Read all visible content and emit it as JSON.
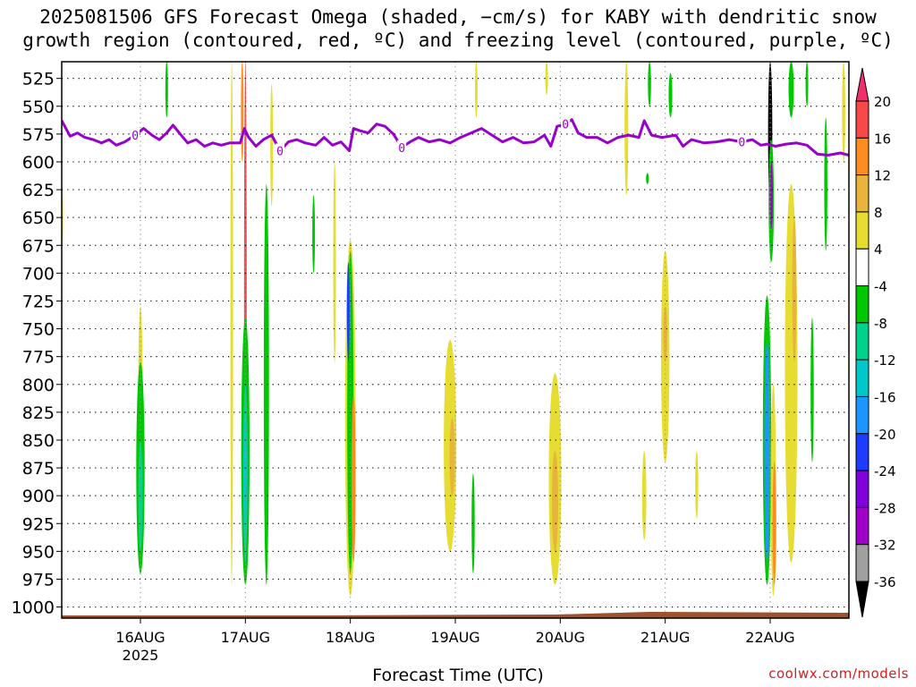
{
  "title": {
    "line1": "2025081506 GFS Forecast Omega (shaded, −cm/s) for KABY with dendritic snow",
    "line2": "growth region (contoured, red, ºC) and freezing level (contoured, purple, ºC)"
  },
  "credit": "coolwx.com/models",
  "chart_data": {
    "type": "heatmap",
    "xlabel": "Forecast Time (UTC)",
    "ylabel": "",
    "x_ticks": [
      {
        "t": 0.75,
        "label": "16AUG",
        "sub": "2025"
      },
      {
        "t": 1.75,
        "label": "17AUG",
        "sub": ""
      },
      {
        "t": 2.75,
        "label": "18AUG",
        "sub": ""
      },
      {
        "t": 3.75,
        "label": "19AUG",
        "sub": ""
      },
      {
        "t": 4.75,
        "label": "20AUG",
        "sub": ""
      },
      {
        "t": 5.75,
        "label": "21AUG",
        "sub": ""
      },
      {
        "t": 6.75,
        "label": "22AUG",
        "sub": ""
      }
    ],
    "xlim": [
      0,
      7.5
    ],
    "ylim": [
      1010,
      510
    ],
    "y_ticks": [
      525,
      550,
      575,
      600,
      625,
      650,
      675,
      700,
      725,
      750,
      775,
      800,
      825,
      850,
      875,
      900,
      925,
      950,
      975,
      1000
    ],
    "colorbar": {
      "bins": [
        {
          "color": "#f0306e",
          "label": "20"
        },
        {
          "color": "#f84848",
          "label": "16"
        },
        {
          "color": "#ff8c1e",
          "label": "12"
        },
        {
          "color": "#e8b43c",
          "label": "8"
        },
        {
          "color": "#e6dc32",
          "label": "4"
        },
        {
          "color": "#ffffff",
          "label": "-4"
        },
        {
          "color": "#00c800",
          "label": "-8"
        },
        {
          "color": "#00d28c",
          "label": "-12"
        },
        {
          "color": "#00c8c8",
          "label": "-16"
        },
        {
          "color": "#1e96ff",
          "label": "-20"
        },
        {
          "color": "#1e3cff",
          "label": "-24"
        },
        {
          "color": "#8200dc",
          "label": "-28"
        },
        {
          "color": "#a000c8",
          "label": "-32"
        },
        {
          "color": "#a0a0a0",
          "label": "-36"
        },
        {
          "color": "#000000",
          "label": ""
        }
      ]
    },
    "freezing_level": {
      "color": "#9900cc",
      "label": "0",
      "points": [
        [
          0.0,
          563
        ],
        [
          0.08,
          577
        ],
        [
          0.15,
          574
        ],
        [
          0.22,
          578
        ],
        [
          0.3,
          580
        ],
        [
          0.38,
          583
        ],
        [
          0.45,
          580
        ],
        [
          0.52,
          585
        ],
        [
          0.6,
          582
        ],
        [
          0.7,
          576
        ],
        [
          0.78,
          570
        ],
        [
          0.86,
          576
        ],
        [
          0.93,
          580
        ],
        [
          1.0,
          574
        ],
        [
          1.06,
          567
        ],
        [
          1.12,
          574
        ],
        [
          1.2,
          583
        ],
        [
          1.28,
          580
        ],
        [
          1.36,
          586
        ],
        [
          1.44,
          583
        ],
        [
          1.52,
          585
        ],
        [
          1.6,
          583
        ],
        [
          1.7,
          583
        ],
        [
          1.74,
          570
        ],
        [
          1.78,
          578
        ],
        [
          1.85,
          586
        ],
        [
          1.92,
          580
        ],
        [
          2.0,
          576
        ],
        [
          2.08,
          590
        ],
        [
          2.16,
          582
        ],
        [
          2.24,
          580
        ],
        [
          2.32,
          583
        ],
        [
          2.42,
          585
        ],
        [
          2.5,
          578
        ],
        [
          2.58,
          585
        ],
        [
          2.66,
          582
        ],
        [
          2.74,
          590
        ],
        [
          2.78,
          570
        ],
        [
          2.84,
          572
        ],
        [
          2.92,
          574
        ],
        [
          3.0,
          566
        ],
        [
          3.08,
          568
        ],
        [
          3.16,
          575
        ],
        [
          3.24,
          587
        ],
        [
          3.32,
          582
        ],
        [
          3.4,
          578
        ],
        [
          3.5,
          582
        ],
        [
          3.6,
          580
        ],
        [
          3.7,
          583
        ],
        [
          3.8,
          578
        ],
        [
          3.9,
          574
        ],
        [
          4.0,
          570
        ],
        [
          4.1,
          576
        ],
        [
          4.2,
          582
        ],
        [
          4.3,
          578
        ],
        [
          4.4,
          583
        ],
        [
          4.5,
          582
        ],
        [
          4.6,
          576
        ],
        [
          4.66,
          586
        ],
        [
          4.72,
          568
        ],
        [
          4.8,
          566
        ],
        [
          4.86,
          562
        ],
        [
          4.92,
          574
        ],
        [
          5.0,
          578
        ],
        [
          5.1,
          578
        ],
        [
          5.2,
          583
        ],
        [
          5.3,
          578
        ],
        [
          5.4,
          576
        ],
        [
          5.5,
          578
        ],
        [
          5.55,
          563
        ],
        [
          5.62,
          576
        ],
        [
          5.72,
          578
        ],
        [
          5.85,
          576
        ],
        [
          5.92,
          586
        ],
        [
          6.0,
          580
        ],
        [
          6.12,
          583
        ],
        [
          6.24,
          582
        ],
        [
          6.36,
          580
        ],
        [
          6.48,
          582
        ],
        [
          6.58,
          580
        ],
        [
          6.66,
          585
        ],
        [
          6.72,
          584
        ],
        [
          6.8,
          586
        ],
        [
          6.9,
          584
        ],
        [
          7.0,
          583
        ],
        [
          7.1,
          585
        ],
        [
          7.2,
          593
        ],
        [
          7.3,
          594
        ],
        [
          7.42,
          592
        ],
        [
          7.5,
          594
        ]
      ]
    },
    "shaded": [
      {
        "t": 1.0,
        "p1": 510,
        "p2": 560,
        "w": 0.01,
        "c": "#00c800"
      },
      {
        "t": 1.62,
        "p1": 510,
        "p2": 980,
        "w": 0.02,
        "c": "#e6dc32"
      },
      {
        "t": 1.75,
        "p1": 510,
        "p2": 950,
        "w": 0.02,
        "c": "#f84848"
      },
      {
        "t": 1.72,
        "p1": 510,
        "p2": 600,
        "w": 0.015,
        "c": "#ff8c1e"
      },
      {
        "t": 2.0,
        "p1": 530,
        "p2": 640,
        "w": 0.02,
        "c": "#e6dc32"
      },
      {
        "t": 2.4,
        "p1": 630,
        "p2": 700,
        "w": 0.02,
        "c": "#00c800"
      },
      {
        "t": 2.6,
        "p1": 600,
        "p2": 780,
        "w": 0.015,
        "c": "#e6dc32"
      },
      {
        "t": 3.95,
        "p1": 510,
        "p2": 560,
        "w": 0.01,
        "c": "#e6dc32"
      },
      {
        "t": 4.62,
        "p1": 510,
        "p2": 540,
        "w": 0.01,
        "c": "#e6dc32"
      },
      {
        "t": 5.6,
        "p1": 510,
        "p2": 550,
        "w": 0.03,
        "c": "#00c800"
      },
      {
        "t": 5.38,
        "p1": 510,
        "p2": 630,
        "w": 0.035,
        "c": "#e6dc32"
      },
      {
        "t": 5.58,
        "p1": 610,
        "p2": 620,
        "w": 0.015,
        "c": "#00c800"
      },
      {
        "t": 5.8,
        "p1": 520,
        "p2": 560,
        "w": 0.035,
        "c": "#00c800"
      },
      {
        "t": 7.45,
        "p1": 510,
        "p2": 600,
        "w": 0.03,
        "c": "#e6dc32"
      },
      {
        "t": 7.1,
        "p1": 510,
        "p2": 550,
        "w": 0.02,
        "c": "#00c800"
      },
      {
        "t": 7.28,
        "p1": 560,
        "p2": 680,
        "w": 0.03,
        "c": "#00c800"
      },
      {
        "t": 6.75,
        "p1": 510,
        "p2": 640,
        "w": 0.04,
        "c": "#000000"
      },
      {
        "t": 6.95,
        "p1": 510,
        "p2": 560,
        "w": 0.05,
        "c": "#00c800"
      },
      {
        "t": 0.0,
        "p1": 620,
        "p2": 680,
        "w": 0.01,
        "c": "#e6dc32"
      },
      {
        "t": 0.75,
        "p1": 730,
        "p2": 860,
        "w": 0.04,
        "c": "#e6dc32"
      },
      {
        "t": 0.75,
        "p1": 780,
        "p2": 970,
        "w": 0.08,
        "c": "#00c800"
      },
      {
        "t": 0.75,
        "p1": 850,
        "p2": 950,
        "w": 0.04,
        "c": "#00d28c"
      },
      {
        "t": 1.75,
        "p1": 740,
        "p2": 980,
        "w": 0.08,
        "c": "#00c800"
      },
      {
        "t": 1.75,
        "p1": 800,
        "p2": 960,
        "w": 0.04,
        "c": "#00c8c8"
      },
      {
        "t": 1.95,
        "p1": 620,
        "p2": 980,
        "w": 0.05,
        "c": "#00c800"
      },
      {
        "t": 2.75,
        "p1": 670,
        "p2": 990,
        "w": 0.1,
        "c": "#e6dc32"
      },
      {
        "t": 2.75,
        "p1": 680,
        "p2": 970,
        "w": 0.06,
        "c": "#00c800"
      },
      {
        "t": 2.73,
        "p1": 690,
        "p2": 780,
        "w": 0.025,
        "c": "#1e3cff"
      },
      {
        "t": 2.78,
        "p1": 810,
        "p2": 960,
        "w": 0.04,
        "c": "#ff8c1e"
      },
      {
        "t": 3.7,
        "p1": 760,
        "p2": 950,
        "w": 0.12,
        "c": "#e6dc32"
      },
      {
        "t": 3.72,
        "p1": 830,
        "p2": 900,
        "w": 0.05,
        "c": "#e8b43c"
      },
      {
        "t": 3.92,
        "p1": 880,
        "p2": 970,
        "w": 0.03,
        "c": "#00c800"
      },
      {
        "t": 4.7,
        "p1": 790,
        "p2": 980,
        "w": 0.12,
        "c": "#e6dc32"
      },
      {
        "t": 4.7,
        "p1": 860,
        "p2": 950,
        "w": 0.06,
        "c": "#e8b43c"
      },
      {
        "t": 5.75,
        "p1": 680,
        "p2": 870,
        "w": 0.08,
        "c": "#e6dc32"
      },
      {
        "t": 5.75,
        "p1": 730,
        "p2": 780,
        "w": 0.04,
        "c": "#e8b43c"
      },
      {
        "t": 5.55,
        "p1": 860,
        "p2": 940,
        "w": 0.04,
        "c": "#e6dc32"
      },
      {
        "t": 6.05,
        "p1": 860,
        "p2": 920,
        "w": 0.03,
        "c": "#e6dc32"
      },
      {
        "t": 6.72,
        "p1": 720,
        "p2": 980,
        "w": 0.08,
        "c": "#00c800"
      },
      {
        "t": 6.72,
        "p1": 760,
        "p2": 960,
        "w": 0.05,
        "c": "#1e96ff"
      },
      {
        "t": 6.76,
        "p1": 580,
        "p2": 690,
        "w": 0.05,
        "c": "#00c800"
      },
      {
        "t": 6.76,
        "p1": 600,
        "p2": 660,
        "w": 0.03,
        "c": "#a000c8"
      },
      {
        "t": 6.78,
        "p1": 800,
        "p2": 990,
        "w": 0.05,
        "c": "#e6dc32"
      },
      {
        "t": 6.79,
        "p1": 870,
        "p2": 980,
        "w": 0.035,
        "c": "#ff8c1e"
      },
      {
        "t": 6.95,
        "p1": 620,
        "p2": 960,
        "w": 0.12,
        "c": "#e6dc32"
      },
      {
        "t": 6.98,
        "p1": 650,
        "p2": 780,
        "w": 0.04,
        "c": "#e8b43c"
      },
      {
        "t": 7.15,
        "p1": 740,
        "p2": 870,
        "w": 0.03,
        "c": "#00c800"
      }
    ],
    "terrain_color": "#a0522d"
  }
}
